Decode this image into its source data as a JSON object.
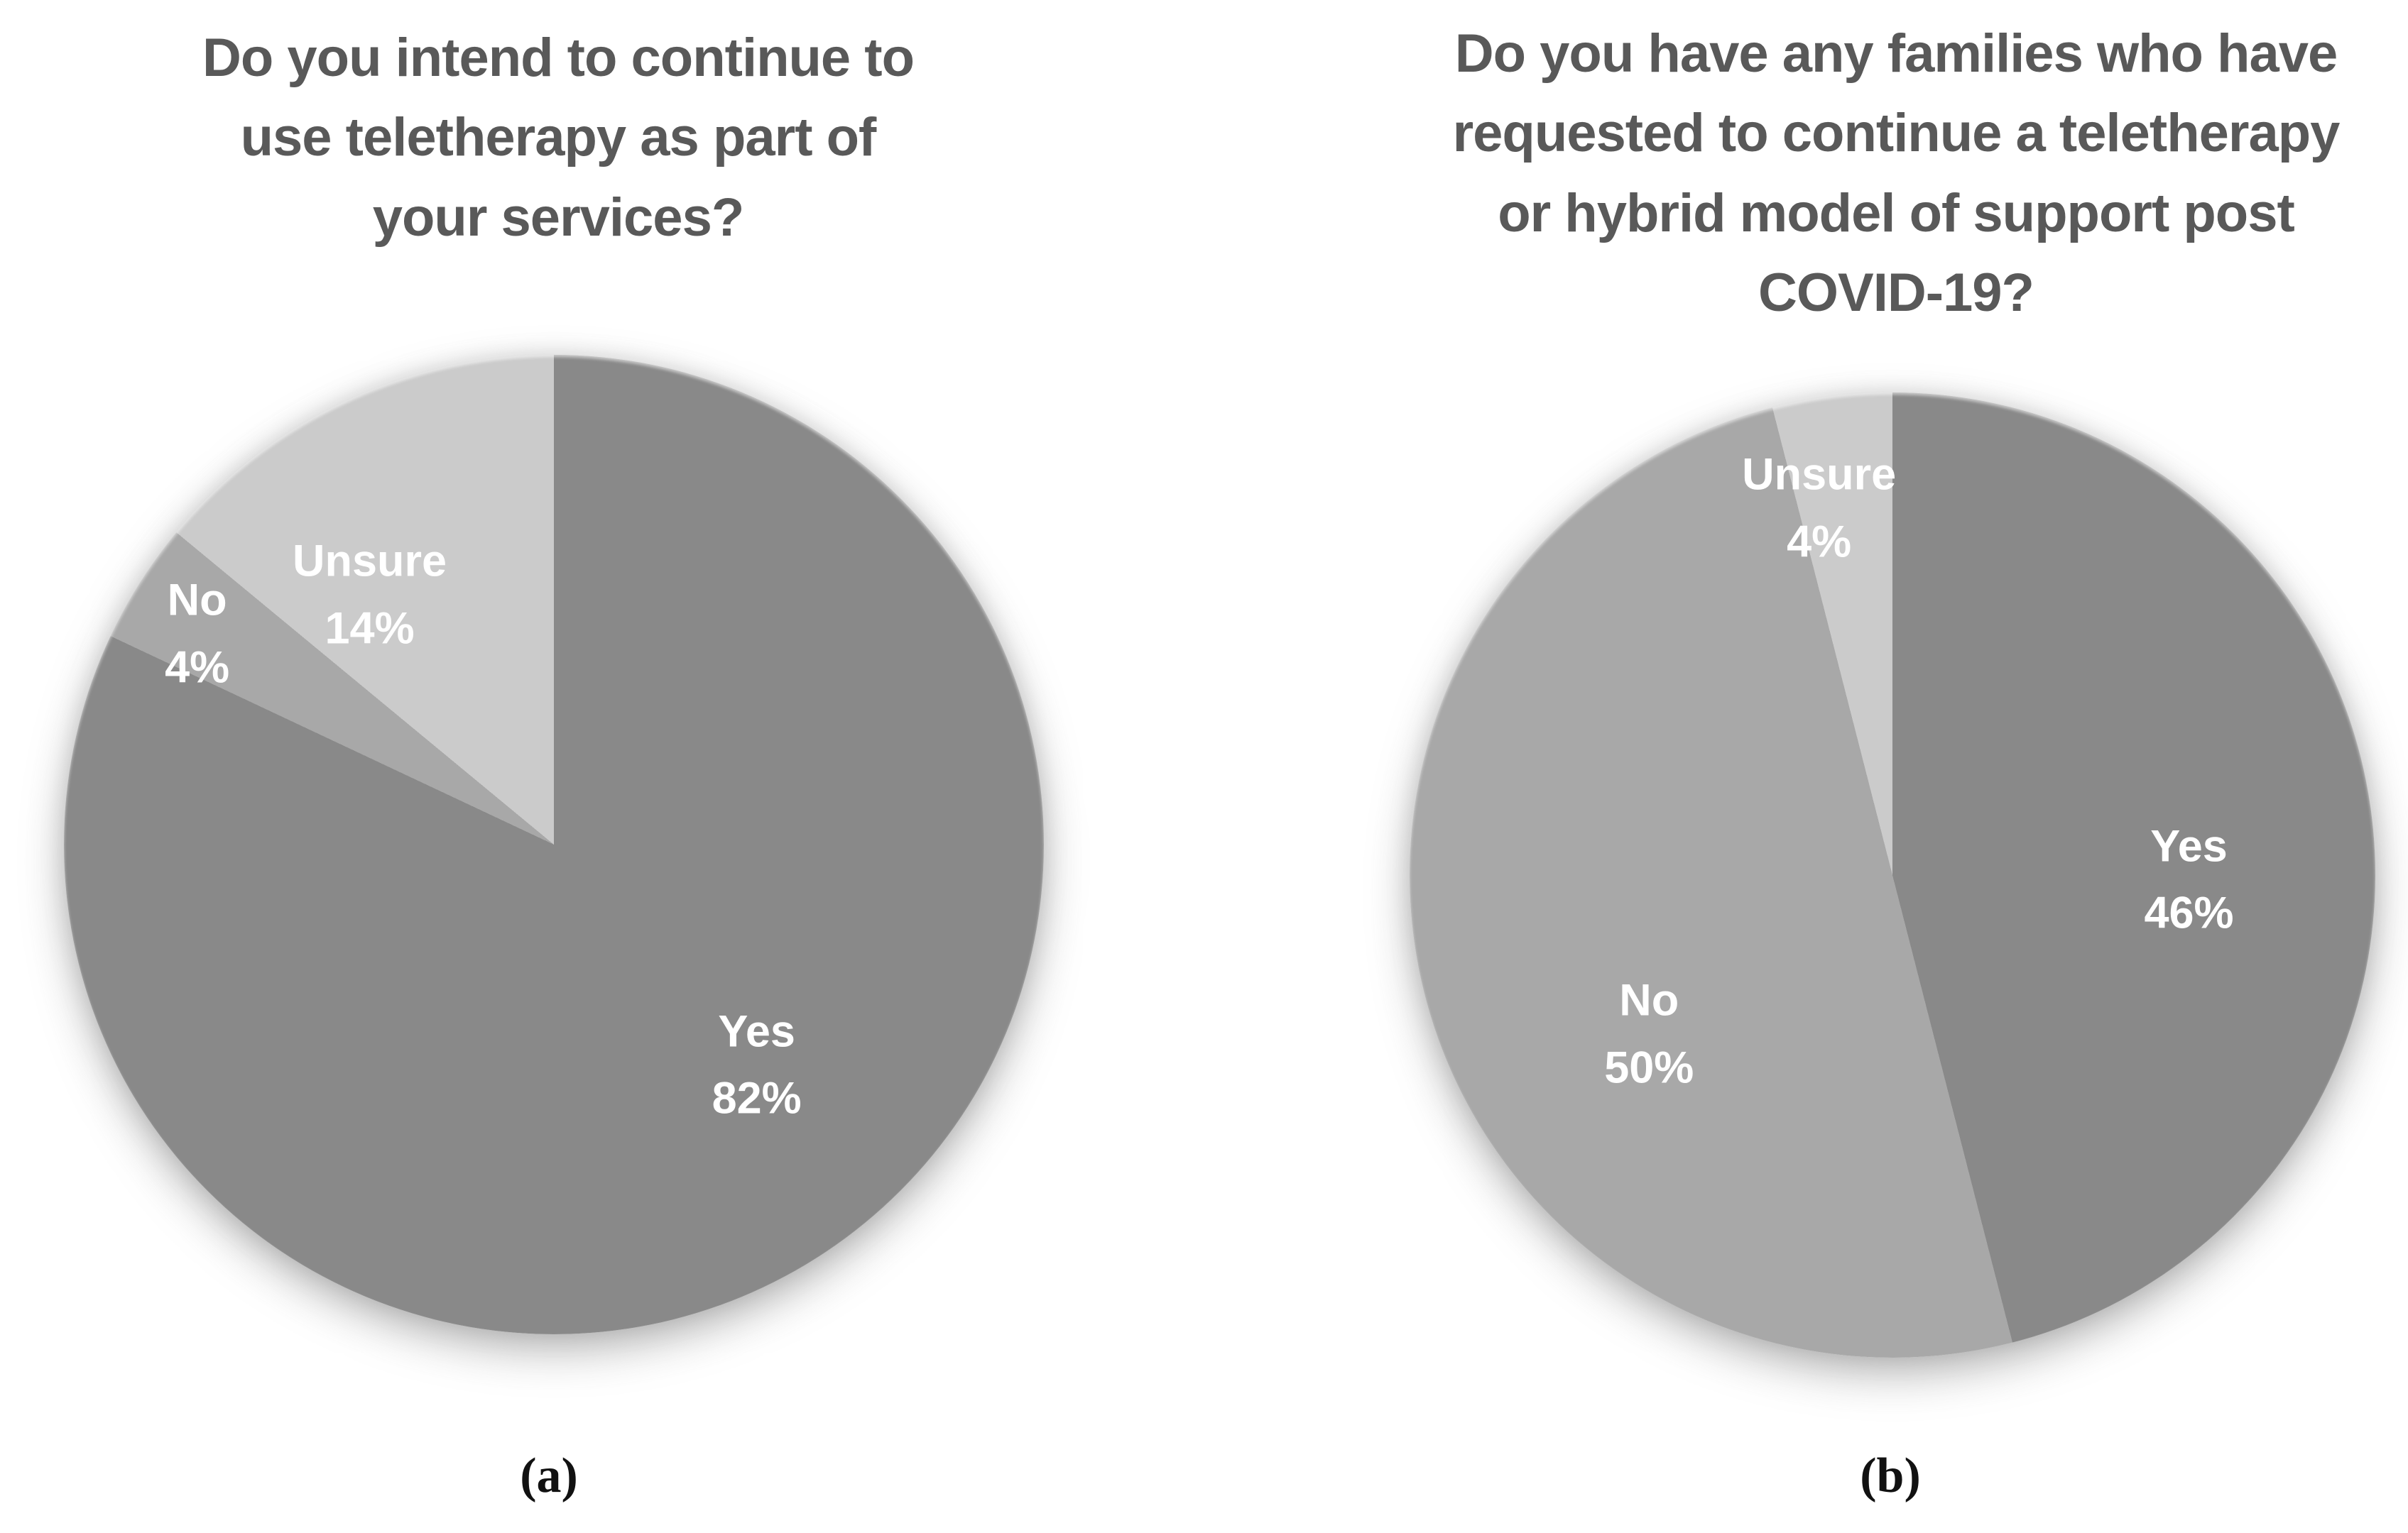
{
  "figure": {
    "background_color": "#ffffff",
    "title_color": "#595959",
    "slice_label_color": "#ffffff"
  },
  "chart_data": [
    {
      "type": "pie",
      "panel_label": "(a)",
      "title": "Do you intend to continue to\nuse teletherapy as part of\nyour services?",
      "start_angle_deg": 0,
      "direction": "clockwise",
      "legend": false,
      "labels_position": "inside",
      "slices": [
        {
          "label": "Yes",
          "value": 82,
          "value_label": "82%",
          "color": "#898989"
        },
        {
          "label": "No",
          "value": 4,
          "value_label": "4%",
          "color": "#a8a8a8"
        },
        {
          "label": "Unsure",
          "value": 14,
          "value_label": "14%",
          "color": "#cbcbcb"
        }
      ]
    },
    {
      "type": "pie",
      "panel_label": "(b)",
      "title": "Do you have any families who have\nrequested to continue a teletherapy\nor hybrid model of support post\nCOVID-19?",
      "start_angle_deg": 0,
      "direction": "clockwise",
      "legend": false,
      "labels_position": "inside",
      "slices": [
        {
          "label": "Yes",
          "value": 46,
          "value_label": "46%",
          "color": "#898989"
        },
        {
          "label": "No",
          "value": 50,
          "value_label": "50%",
          "color": "#a8a8a8"
        },
        {
          "label": "Unsure",
          "value": 4,
          "value_label": "4%",
          "color": "#cbcbcb"
        }
      ]
    }
  ]
}
